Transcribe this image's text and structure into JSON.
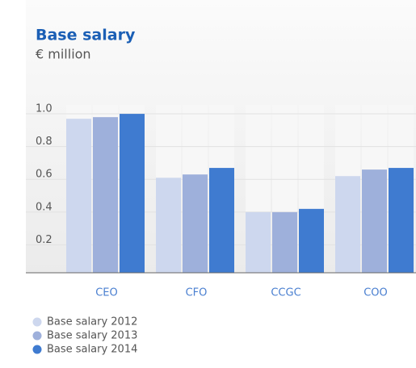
{
  "chart_data": {
    "type": "bar",
    "title": "Base salary",
    "subtitle": "€ million",
    "categories": [
      "CEO",
      "CFO",
      "CCGC",
      "COO"
    ],
    "series": [
      {
        "name": "Base salary 2012",
        "color": "#cdd7ee",
        "values": [
          0.94,
          0.58,
          0.37,
          0.59
        ]
      },
      {
        "name": "Base salary 2013",
        "color": "#9eb0db",
        "values": [
          0.95,
          0.6,
          0.37,
          0.63
        ]
      },
      {
        "name": "Base salary 2014",
        "color": "#3f7bd0",
        "values": [
          0.97,
          0.64,
          0.39,
          0.64
        ]
      }
    ],
    "ylim": [
      0,
      1
    ],
    "yticks": [
      {
        "value": 1,
        "label": "1.0"
      },
      0.8,
      0.6,
      0.4,
      0.2
    ],
    "grid": true,
    "legend": "bottom-left"
  }
}
